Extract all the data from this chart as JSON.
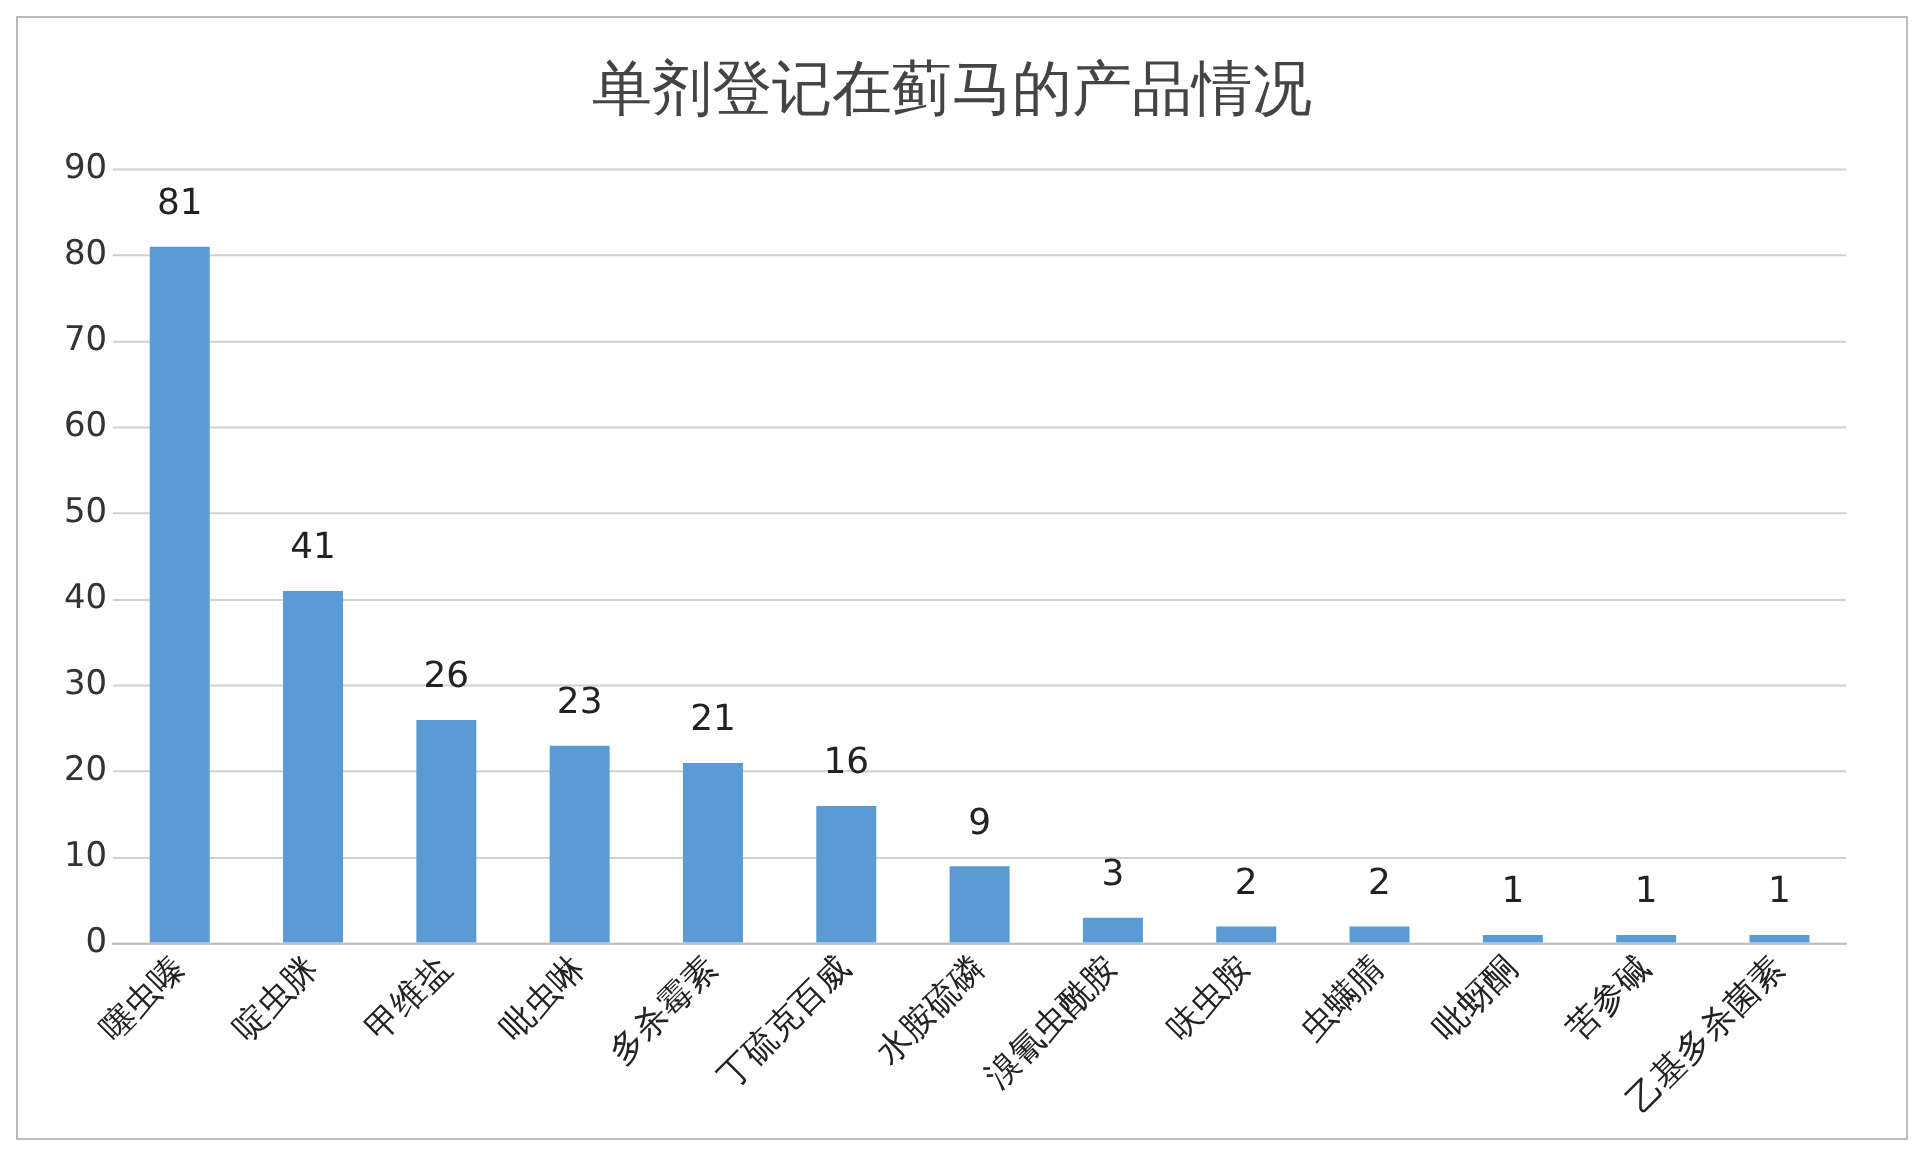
{
  "chart_data": {
    "type": "bar",
    "title": "单剂登记在蓟马的产品情况",
    "categories": [
      "噻虫嗪",
      "啶虫脒",
      "甲维盐",
      "吡虫啉",
      "多杀霉素",
      "丁硫克百威",
      "水胺硫磷",
      "溴氰虫酰胺",
      "呋虫胺",
      "虫螨腈",
      "吡蚜酮",
      "苦参碱",
      "乙基多杀菌素"
    ],
    "values": [
      81,
      41,
      26,
      23,
      21,
      16,
      9,
      3,
      2,
      2,
      1,
      1,
      1
    ],
    "color": "#5b9bd5",
    "ylim": [
      0,
      90
    ],
    "yticks": [
      0,
      10,
      20,
      30,
      40,
      50,
      60,
      70,
      80,
      90
    ],
    "grid": "y",
    "legend": false,
    "data_labels": true
  }
}
